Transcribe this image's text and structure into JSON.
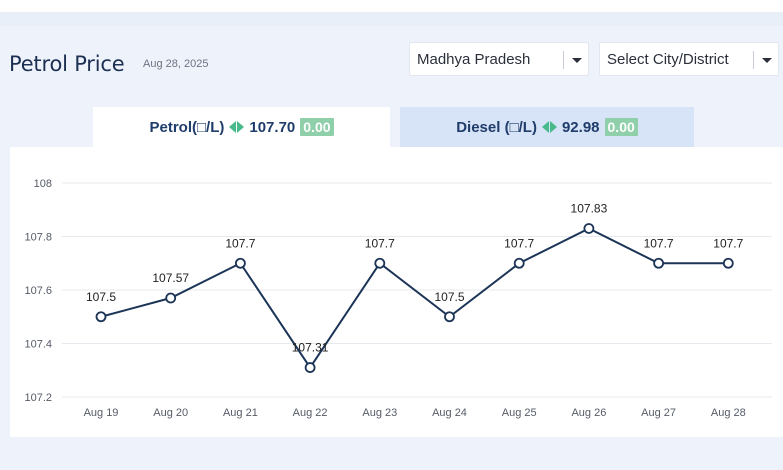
{
  "header": {
    "title": "Petrol Price",
    "date": "Aug 28, 2025"
  },
  "filters": {
    "state": "Madhya Pradesh",
    "city": "Select City/District"
  },
  "tabs": [
    {
      "label": "Petrol(□/L)",
      "price": "107.70",
      "change": "0.00",
      "active": true
    },
    {
      "label": "Diesel (□/L)",
      "price": "92.98",
      "change": "0.00",
      "active": false
    }
  ],
  "colors": {
    "line": "#1c3557",
    "accent_green": "#47b98a",
    "badge": "#8fcfa9"
  },
  "chart_data": {
    "type": "line",
    "categories": [
      "Aug 19",
      "Aug 20",
      "Aug 21",
      "Aug 22",
      "Aug 23",
      "Aug 24",
      "Aug 25",
      "Aug 26",
      "Aug 27",
      "Aug 28"
    ],
    "values": [
      107.5,
      107.57,
      107.7,
      107.31,
      107.7,
      107.5,
      107.7,
      107.83,
      107.7,
      107.7
    ],
    "data_labels": [
      "107.5",
      "107.57",
      "107.7",
      "107.31",
      "107.7",
      "107.5",
      "107.7",
      "107.83",
      "107.7",
      "107.7"
    ],
    "yticks": [
      "108",
      "107.8",
      "107.6",
      "107.4",
      "107.2"
    ],
    "ylim": [
      107.2,
      108
    ],
    "grid": true
  }
}
